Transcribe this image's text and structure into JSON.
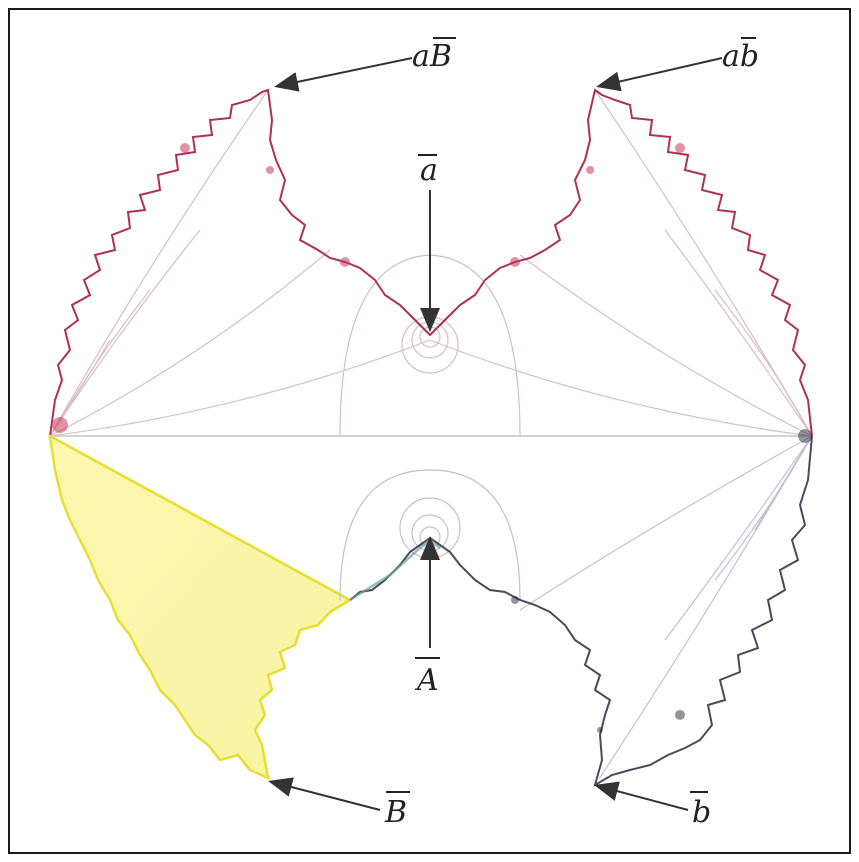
{
  "labels": {
    "aB": "aB",
    "ab": "ab",
    "a": "a",
    "A": "A",
    "B": "B",
    "b": "b"
  },
  "colors": {
    "frame": "#1a1a1a",
    "upper_boundary": "#b0304f",
    "upper_arcs": "#cfa9b8",
    "lower_right_boundary": "#4a4a5a",
    "lower_right_arcs": "#b8b8cc",
    "lower_left_fill": "#f2ec5c",
    "center_cusp_tint": "#6aa39a",
    "arrow": "#333333"
  }
}
